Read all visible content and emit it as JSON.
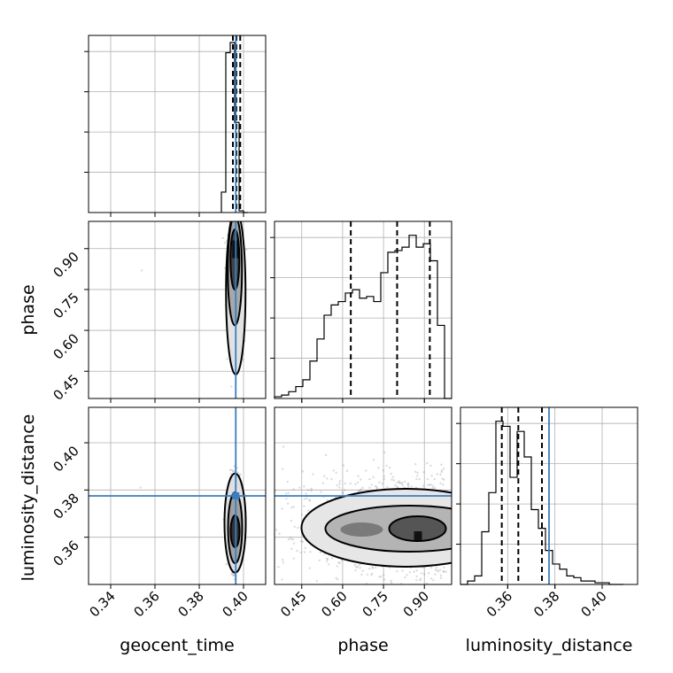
{
  "chart_data": {
    "type": "corner",
    "parameters": [
      "geocent_time",
      "phase",
      "luminosity_distance"
    ],
    "ranges": {
      "geocent_time": [
        0.33,
        0.41
      ],
      "phase": [
        0.35,
        1.0
      ],
      "luminosity_distance": [
        0.34,
        0.415
      ]
    },
    "ticks": {
      "geocent_time": [
        "0.34",
        "0.36",
        "0.38",
        "0.40"
      ],
      "phase": [
        "0.45",
        "0.60",
        "0.75",
        "0.90"
      ],
      "luminosity_distance": [
        "0.36",
        "0.38",
        "0.40"
      ]
    },
    "truths": {
      "geocent_time": 0.3965,
      "phase": null,
      "luminosity_distance": 0.3775
    },
    "quantiles": {
      "geocent_time": [
        0.3952,
        0.3968,
        0.3985
      ],
      "phase": [
        0.63,
        0.8,
        0.92
      ],
      "luminosity_distance": [
        0.3575,
        0.3645,
        0.3745
      ]
    },
    "histograms": {
      "geocent_time": {
        "edges": [
          0.39,
          0.392,
          0.394,
          0.396,
          0.398,
          0.4,
          0.402
        ],
        "counts": [
          0.12,
          0.94,
          1.0,
          0.53,
          0.01,
          0.0
        ]
      },
      "phase": {
        "edges": [
          0.35,
          0.376,
          0.402,
          0.428,
          0.454,
          0.48,
          0.506,
          0.532,
          0.558,
          0.584,
          0.61,
          0.636,
          0.662,
          0.688,
          0.714,
          0.74,
          0.766,
          0.792,
          0.818,
          0.844,
          0.87,
          0.896,
          0.922,
          0.948,
          0.974,
          1.0
        ],
        "counts": [
          0.01,
          0.02,
          0.04,
          0.07,
          0.11,
          0.22,
          0.35,
          0.49,
          0.55,
          0.57,
          0.62,
          0.64,
          0.59,
          0.6,
          0.57,
          0.74,
          0.86,
          0.87,
          0.89,
          0.96,
          0.89,
          0.91,
          0.81,
          0.43,
          0.0
        ]
      },
      "luminosity_distance": {
        "edges": [
          0.34,
          0.343,
          0.346,
          0.349,
          0.352,
          0.355,
          0.358,
          0.361,
          0.364,
          0.367,
          0.37,
          0.373,
          0.376,
          0.379,
          0.382,
          0.385,
          0.388,
          0.391,
          0.394,
          0.397,
          0.4,
          0.403,
          0.406,
          0.409
        ],
        "counts": [
          0.0,
          0.02,
          0.05,
          0.31,
          0.54,
          0.96,
          0.93,
          0.63,
          0.9,
          0.75,
          0.44,
          0.33,
          0.2,
          0.12,
          0.09,
          0.05,
          0.04,
          0.02,
          0.02,
          0.01,
          0.01,
          0.0,
          0.0
        ]
      }
    }
  }
}
